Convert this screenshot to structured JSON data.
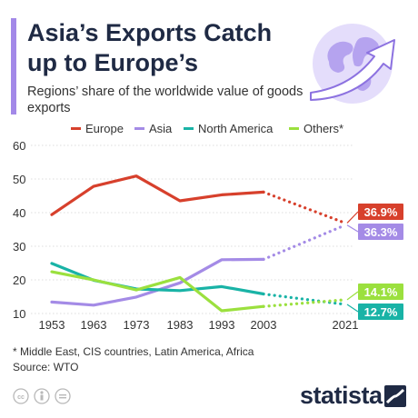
{
  "header": {
    "title": "Asia’s Exports Catch up to Europe’s",
    "subtitle": "Regions’ share of the worldwide value of goods exports"
  },
  "legend": [
    {
      "label": "Europe",
      "color": "#d7402c"
    },
    {
      "label": "Asia",
      "color": "#a48be6"
    },
    {
      "label": "North America",
      "color": "#19b3a6"
    },
    {
      "label": "Others*",
      "color": "#9be03e"
    }
  ],
  "chart_data": {
    "type": "line",
    "title": "Asia’s Exports Catch up to Europe’s",
    "subtitle": "Regions’ share of the worldwide value of goods exports",
    "xlabel": "",
    "ylabel": "",
    "x": [
      1953,
      1963,
      1973,
      1983,
      1993,
      2003,
      2021
    ],
    "x_tick_labels": [
      "1953",
      "1963",
      "1973",
      "1983",
      "1993",
      "2003",
      "2021"
    ],
    "ylim": [
      10,
      60
    ],
    "y_ticks": [
      10,
      20,
      30,
      40,
      50,
      60
    ],
    "grid": true,
    "legend_position": "top",
    "dotted_segment": "2003-2021",
    "series": [
      {
        "name": "Europe",
        "color": "#d7402c",
        "values": [
          39.4,
          47.8,
          50.9,
          43.5,
          45.3,
          46.1,
          36.9
        ],
        "end_label": "36.9%"
      },
      {
        "name": "Asia",
        "color": "#a48be6",
        "values": [
          13.4,
          12.5,
          14.9,
          19.1,
          26.0,
          26.1,
          36.3
        ],
        "end_label": "36.3%"
      },
      {
        "name": "North America",
        "color": "#19b3a6",
        "values": [
          24.9,
          19.9,
          17.3,
          16.8,
          18.0,
          15.8,
          12.7
        ],
        "end_label": "12.7%"
      },
      {
        "name": "Others*",
        "color": "#9be03e",
        "values": [
          22.4,
          20.0,
          17.0,
          20.7,
          10.8,
          12.1,
          14.1
        ],
        "end_label": "14.1%"
      }
    ]
  },
  "footer": {
    "footnote": "* Middle East, CIS countries, Latin America, Africa",
    "source": "Source: WTO",
    "brand": "statista"
  }
}
